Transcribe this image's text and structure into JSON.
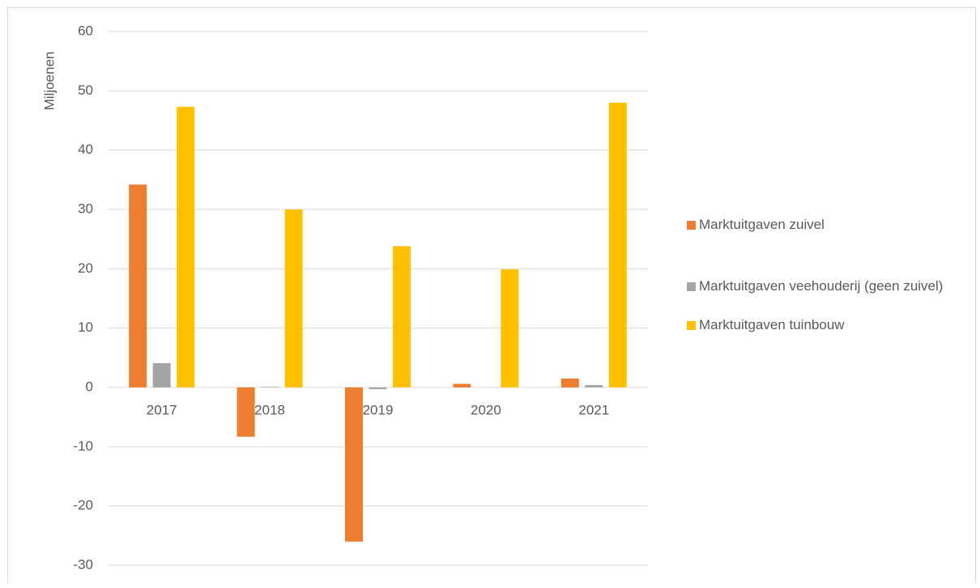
{
  "chart_data": {
    "type": "bar",
    "y_label": "Miljoenen",
    "categories": [
      "2017",
      "2018",
      "2019",
      "2020",
      "2021"
    ],
    "series": [
      {
        "name": "Marktuitgaven zuivel",
        "color": "#ed7d31",
        "values": [
          34.2,
          -8.3,
          -26,
          0.6,
          1.5
        ]
      },
      {
        "name": "Marktuitgaven veehouderij (geen zuivel)",
        "color": "#a5a5a5",
        "values": [
          4.1,
          0.1,
          -0.3,
          0,
          0.4
        ]
      },
      {
        "name": "Marktuitgaven tuinbouw",
        "color": "#ffc000",
        "values": [
          47.3,
          30,
          23.8,
          19.9,
          48
        ]
      }
    ],
    "ylim": [
      -30,
      60
    ],
    "yticks": [
      -30,
      -20,
      -10,
      0,
      10,
      20,
      30,
      40,
      50,
      60
    ],
    "grid": true,
    "legend": "right"
  }
}
